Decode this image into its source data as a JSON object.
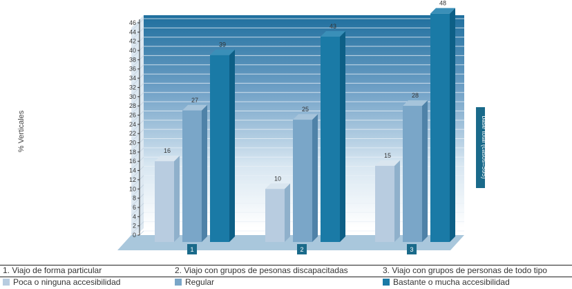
{
  "chart_data": {
    "type": "bar",
    "categories": [
      "1",
      "2",
      "3"
    ],
    "series": [
      {
        "name": "Poca o ninguna accesibilidad",
        "values": [
          16,
          10,
          15
        ],
        "color": "#b8cce0"
      },
      {
        "name": "Regular",
        "values": [
          27,
          25,
          28
        ],
        "color": "#7aa6c8"
      },
      {
        "name": "Bastante o mucha accesibilidad",
        "values": [
          39,
          43,
          48
        ],
        "color": "#1a7aa6"
      }
    ],
    "ylabel": "% Verticales",
    "ylim": [
      0,
      46
    ],
    "yticks": [
      0,
      2,
      4,
      6,
      8,
      10,
      12,
      14,
      16,
      18,
      20,
      22,
      24,
      26,
      28,
      30,
      32,
      34,
      36,
      38,
      40,
      42,
      44,
      46
    ],
    "side_note": "base total (casos=595)",
    "grid": true,
    "legend_position": "bottom"
  },
  "footer": {
    "categories": [
      "1.   Viajo de forma particular",
      "2. Viajo con grupos de pesonas discapacitadas",
      "3. Viajo con grupos de personas de todo tipo"
    ]
  },
  "colors": {
    "accent": "#1a7aa6",
    "category_box": "#1a6a8a",
    "floor": "#a9c7dc",
    "wall": "#1f6f9e"
  }
}
